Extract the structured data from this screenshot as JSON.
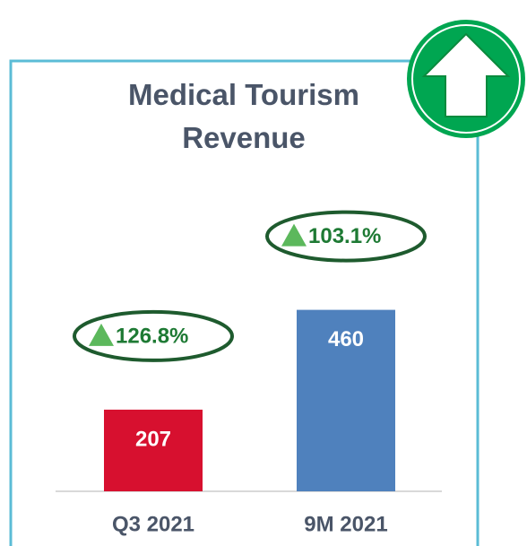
{
  "chart_data": {
    "type": "bar",
    "title": "Medical Tourism Revenue",
    "categories": [
      "Q3 2021",
      "9M 2021"
    ],
    "values": [
      207,
      460
    ],
    "colors": [
      "#d7102f",
      "#4f81bd"
    ],
    "annotations": [
      "126.8%",
      "103.1%"
    ]
  }
}
